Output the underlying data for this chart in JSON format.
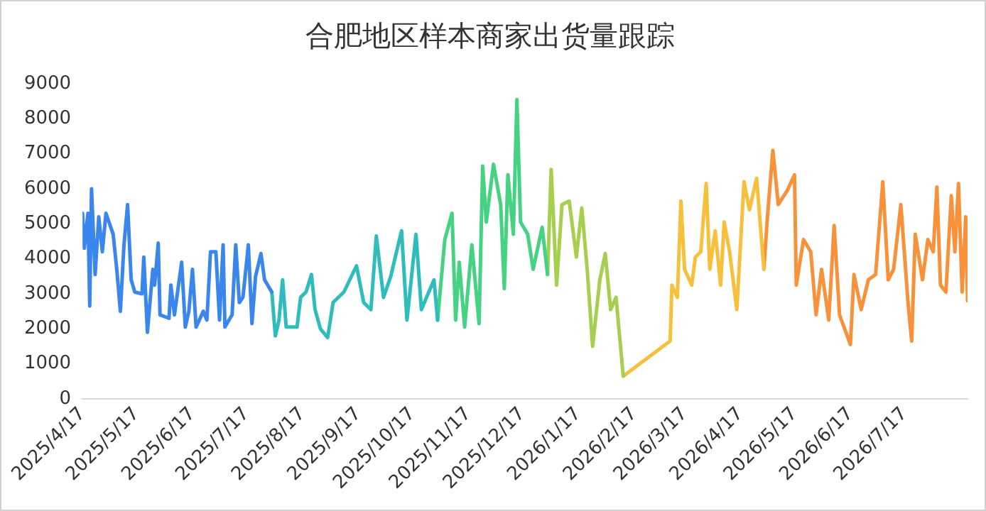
{
  "chart_data": {
    "type": "line",
    "title": "合肥地区样本商家出货量跟踪",
    "xlim": [
      "2025-04-17",
      "2026-08-21"
    ],
    "xticks": [
      {
        "value": "2025-04-17",
        "label": "2025/4/17"
      },
      {
        "value": "2025-05-17",
        "label": "2025/5/17"
      },
      {
        "value": "2025-06-17",
        "label": "2025/6/17"
      },
      {
        "value": "2025-07-17",
        "label": "2025/7/17"
      },
      {
        "value": "2025-08-17",
        "label": "2025/8/17"
      },
      {
        "value": "2025-09-17",
        "label": "2025/9/17"
      },
      {
        "value": "2025-10-17",
        "label": "2025/10/17"
      },
      {
        "value": "2025-11-17",
        "label": "2025/11/17"
      },
      {
        "value": "2025-12-17",
        "label": "2025/12/17"
      },
      {
        "value": "2026-01-17",
        "label": "2026/1/17"
      },
      {
        "value": "2026-02-17",
        "label": "2026/2/17"
      },
      {
        "value": "2026-03-17",
        "label": "2026/3/17"
      },
      {
        "value": "2026-04-17",
        "label": "2026/4/17"
      },
      {
        "value": "2026-05-17",
        "label": "2026/5/17"
      },
      {
        "value": "2026-06-17",
        "label": "2026/6/17"
      },
      {
        "value": "2026-07-17",
        "label": "2026/7/17"
      }
    ],
    "ylim": [
      0,
      9000
    ],
    "yticks": [
      0,
      1000,
      2000,
      3000,
      4000,
      5000,
      6000,
      7000,
      8000,
      9000
    ],
    "grid": false,
    "legend": false,
    "marker": "none",
    "line_style": "solid",
    "series": [
      {
        "color": "#3a86ec",
        "x": [
          "2025-04-17",
          "2025-04-18",
          "2025-04-20",
          "2025-04-21",
          "2025-04-22",
          "2025-04-24",
          "2025-04-26",
          "2025-04-28",
          "2025-04-30",
          "2025-05-04",
          "2025-05-06",
          "2025-05-08",
          "2025-05-10",
          "2025-05-12",
          "2025-05-14",
          "2025-05-16",
          "2025-05-20",
          "2025-05-21",
          "2025-05-23",
          "2025-05-26",
          "2025-05-27",
          "2025-05-29",
          "2025-05-30",
          "2025-06-04",
          "2025-06-05",
          "2025-06-07",
          "2025-06-11",
          "2025-06-13",
          "2025-06-15",
          "2025-06-17",
          "2025-06-19",
          "2025-06-23",
          "2025-06-25",
          "2025-06-27",
          "2025-06-30",
          "2025-07-02",
          "2025-07-04",
          "2025-07-05",
          "2025-07-09",
          "2025-07-11",
          "2025-07-13",
          "2025-07-15",
          "2025-07-18",
          "2025-07-20",
          "2025-07-22",
          "2025-07-25",
          "2025-07-27",
          "2025-07-31"
        ],
        "values": [
          5300,
          4300,
          5300,
          2650,
          6000,
          3550,
          5200,
          4200,
          5300,
          4700,
          3700,
          2500,
          4400,
          5550,
          3400,
          3050,
          3000,
          4050,
          1900,
          3700,
          3250,
          4450,
          2400,
          2300,
          3250,
          2400,
          3900,
          2050,
          2500,
          3700,
          2050,
          2500,
          2250,
          4200,
          4200,
          2250,
          4400,
          2050,
          2400,
          4400,
          2750,
          2900,
          4400,
          2150,
          3500,
          4150,
          3400,
          3050
        ]
      },
      {
        "color": "#2fbcbc",
        "x": [
          "2025-07-31",
          "2025-08-02",
          "2025-08-04",
          "2025-08-06",
          "2025-08-08",
          "2025-08-14",
          "2025-08-16",
          "2025-08-19",
          "2025-08-22",
          "2025-08-24",
          "2025-08-27",
          "2025-08-31",
          "2025-09-03",
          "2025-09-09",
          "2025-09-16",
          "2025-09-20",
          "2025-09-24",
          "2025-09-27",
          "2025-10-01",
          "2025-10-05",
          "2025-10-11",
          "2025-10-14",
          "2025-10-19",
          "2025-10-22",
          "2025-10-29",
          "2025-10-31"
        ],
        "values": [
          3050,
          1800,
          2250,
          3400,
          2050,
          2050,
          2900,
          3050,
          3550,
          2550,
          2000,
          1750,
          2750,
          3050,
          3800,
          2750,
          2550,
          4650,
          2900,
          3500,
          4800,
          2250,
          4700,
          2550,
          3400,
          2250
        ]
      },
      {
        "color": "#45d383",
        "x": [
          "2025-10-31",
          "2025-11-04",
          "2025-11-08",
          "2025-11-10",
          "2025-11-12",
          "2025-11-15",
          "2025-11-19",
          "2025-11-23",
          "2025-11-25",
          "2025-11-27",
          "2025-12-01",
          "2025-12-05",
          "2025-12-07",
          "2025-12-09",
          "2025-12-12",
          "2025-12-14",
          "2025-12-16",
          "2025-12-20",
          "2025-12-23",
          "2025-12-28",
          "2025-12-31"
        ],
        "values": [
          2250,
          4550,
          5300,
          2250,
          3900,
          2050,
          4400,
          2150,
          6650,
          5050,
          6700,
          5550,
          3150,
          6400,
          4700,
          8550,
          5050,
          4700,
          3700,
          4900,
          3550
        ]
      },
      {
        "color": "#a6cf50",
        "x": [
          "2025-12-31",
          "2026-01-02",
          "2026-01-05",
          "2026-01-08",
          "2026-01-12",
          "2026-01-16",
          "2026-01-19",
          "2026-01-22",
          "2026-01-25",
          "2026-01-29",
          "2026-02-01",
          "2026-02-04",
          "2026-02-07",
          "2026-02-11"
        ],
        "values": [
          3550,
          6550,
          3250,
          5550,
          5650,
          4050,
          5450,
          3700,
          1500,
          3400,
          4150,
          2550,
          2900,
          650
        ]
      },
      {
        "color": "#f7c03c",
        "x": [
          "2026-02-11",
          "2026-03-09",
          "2026-03-10",
          "2026-03-13",
          "2026-03-15",
          "2026-03-17",
          "2026-03-21",
          "2026-03-23",
          "2026-03-26",
          "2026-03-29",
          "2026-03-31",
          "2026-04-03",
          "2026-04-06",
          "2026-04-08",
          "2026-04-11",
          "2026-04-15",
          "2026-04-19",
          "2026-04-22",
          "2026-04-26",
          "2026-04-30"
        ],
        "values": [
          650,
          1650,
          3250,
          2900,
          5650,
          3700,
          3250,
          4050,
          4200,
          6150,
          3700,
          4800,
          3250,
          5050,
          4200,
          2550,
          6200,
          5400,
          6300,
          3700
        ]
      },
      {
        "color": "#f8923a",
        "x": [
          "2026-04-30",
          "2026-05-02",
          "2026-05-05",
          "2026-05-08",
          "2026-05-13",
          "2026-05-17",
          "2026-05-18",
          "2026-05-22",
          "2026-05-26",
          "2026-05-29",
          "2026-06-01",
          "2026-06-05",
          "2026-06-08",
          "2026-06-11",
          "2026-06-17",
          "2026-06-19",
          "2026-06-23",
          "2026-06-27",
          "2026-07-01",
          "2026-07-05",
          "2026-07-08",
          "2026-07-11",
          "2026-07-15",
          "2026-07-19",
          "2026-07-21",
          "2026-07-23",
          "2026-07-27",
          "2026-07-30",
          "2026-08-02",
          "2026-08-04",
          "2026-08-06",
          "2026-08-09",
          "2026-08-12",
          "2026-08-14",
          "2026-08-16",
          "2026-08-18",
          "2026-08-20",
          "2026-08-21"
        ],
        "values": [
          3700,
          5200,
          7100,
          5550,
          5950,
          6400,
          3250,
          4550,
          4200,
          2400,
          3700,
          2250,
          4950,
          2400,
          1550,
          3550,
          2550,
          3400,
          3550,
          6200,
          3400,
          3700,
          5550,
          2750,
          1650,
          4700,
          3400,
          4550,
          4200,
          6050,
          3250,
          3050,
          5800,
          4200,
          6150,
          3050,
          5200,
          2800
        ]
      }
    ]
  }
}
